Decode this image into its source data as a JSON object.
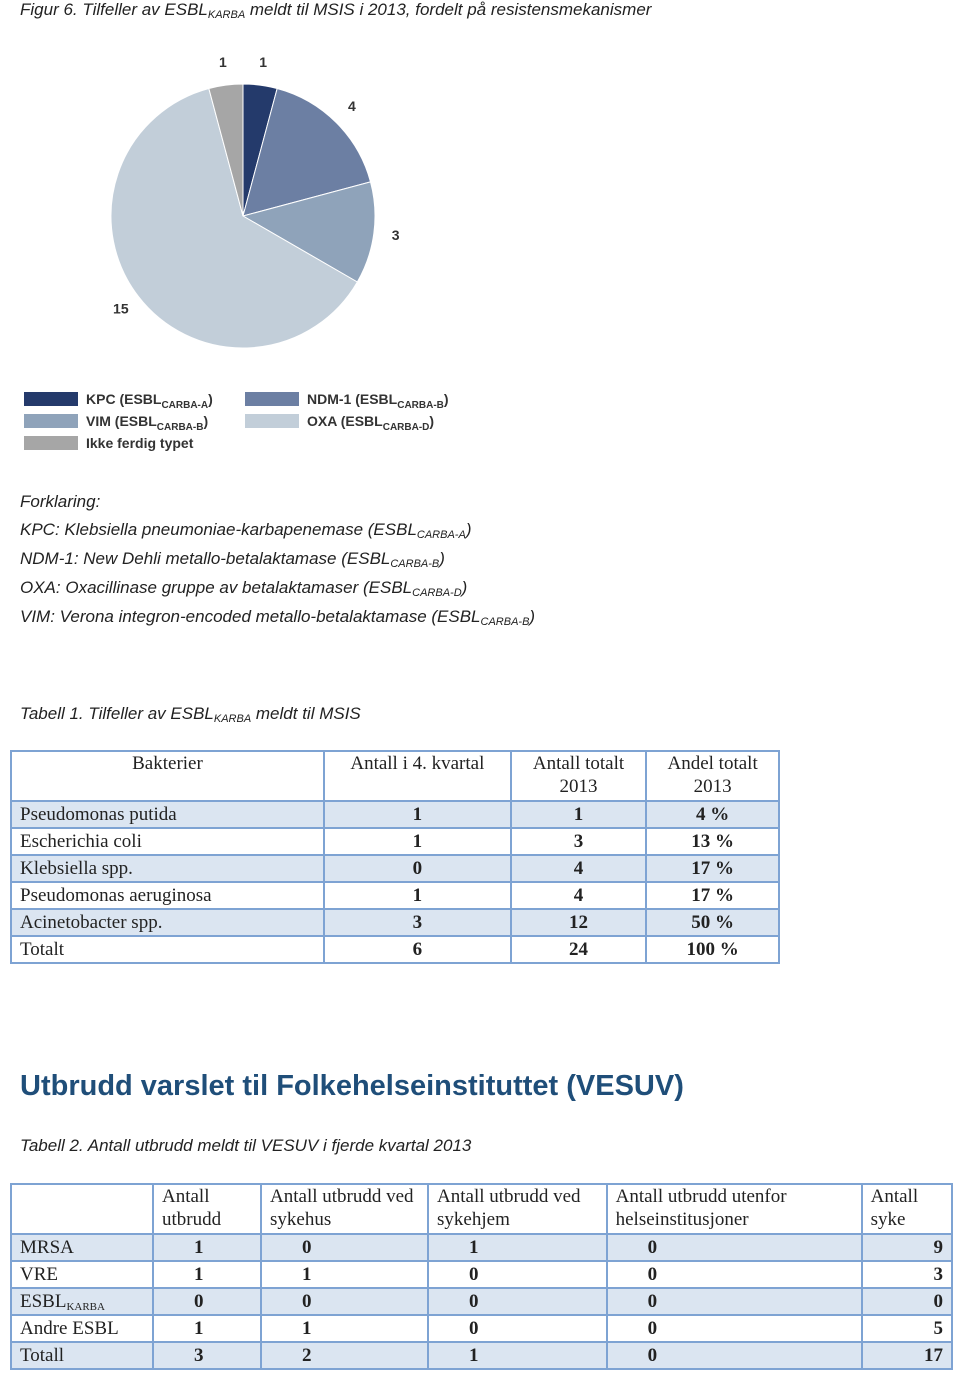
{
  "caption": [
    "Figur 6. Tilfeller av ESBL",
    "KARBA",
    " meldt til MSIS i 2013, fordelt på resistensmekanismer"
  ],
  "chart_data": {
    "type": "pie",
    "categories": [
      [
        "KPC (ESBL",
        "CARBA-A",
        ")"
      ],
      [
        "NDM-1 (ESBL",
        "CARBA-B",
        ")"
      ],
      [
        "VIM (ESBL",
        "CARBA-B",
        ")"
      ],
      [
        "OXA (ESBL",
        "CARBA-D",
        ")"
      ],
      [
        "Ikke ferdig typet"
      ]
    ],
    "values": [
      1,
      4,
      3,
      15,
      1
    ],
    "colors": [
      "#243a6b",
      "#6c7fa3",
      "#8fa3ba",
      "#c2ced9",
      "#a6a6a6"
    ]
  },
  "explanation": {
    "title": "Forklaring:",
    "lines": [
      [
        "KPC: Klebsiella pneumoniae-karbapenemase (ESBL",
        "CARBA-A",
        ")"
      ],
      [
        "NDM-1: New Dehli metallo-betalaktamase (ESBL",
        "CARBA-B",
        ")"
      ],
      [
        "OXA: Oxacillinase gruppe av betalaktamaser (ESBL",
        "CARBA-D",
        ")"
      ],
      [
        "VIM: Verona integron-encoded metallo-betalaktamase (ESBL",
        "CARBA-B",
        ")"
      ]
    ]
  },
  "table1": {
    "title": [
      "Tabell 1. Tilfeller av ESBL",
      "KARBA",
      " meldt til MSIS"
    ],
    "header": [
      "Bakterier",
      "Antall i 4. kvartal",
      "Antall totalt 2013",
      "Andel totalt 2013"
    ],
    "rows": [
      [
        "Pseudomonas putida",
        1,
        1,
        "4 %"
      ],
      [
        "Escherichia coli",
        1,
        3,
        "13 %"
      ],
      [
        "Klebsiella spp.",
        0,
        4,
        "17 %"
      ],
      [
        "Pseudomonas aeruginosa",
        1,
        4,
        "17 %"
      ],
      [
        "Acinetobacter spp.",
        3,
        12,
        "50 %"
      ],
      [
        "Totalt",
        6,
        24,
        "100 %"
      ]
    ]
  },
  "heading": "Utbrudd varslet til Folkehelseinstituttet (VESUV)",
  "table2": {
    "title": "Tabell 2. Antall utbrudd meldt til VESUV i fjerde kvartal 2013",
    "header": [
      "Antall utbrudd",
      "Antall utbrudd ved sykehus",
      "Antall utbrudd ved sykehjem",
      "Antall utbrudd utenfor helseinstitusjoner",
      "Antall syke"
    ],
    "rows": [
      [
        "MRSA",
        1,
        0,
        1,
        0,
        9
      ],
      [
        "VRE",
        1,
        1,
        0,
        0,
        3
      ],
      [
        [
          "ESBL",
          "KARBA"
        ],
        0,
        0,
        0,
        0,
        0
      ],
      [
        "Andre ESBL",
        1,
        1,
        0,
        0,
        5
      ],
      [
        "Totall",
        3,
        2,
        1,
        0,
        17
      ]
    ]
  }
}
